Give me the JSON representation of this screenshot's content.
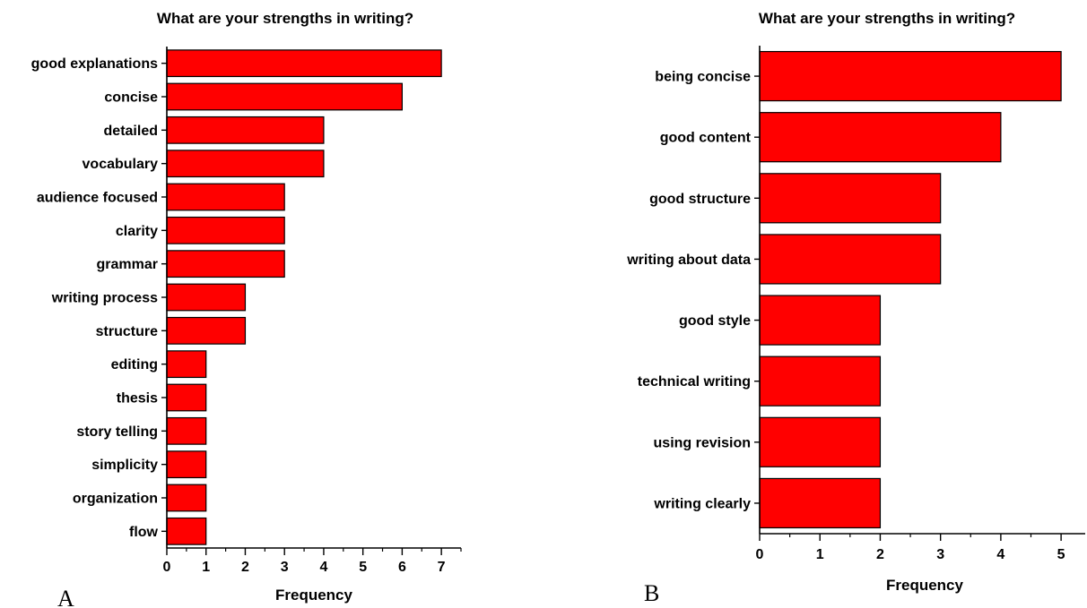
{
  "chart_data": [
    {
      "type": "bar",
      "orientation": "horizontal",
      "panel_label": "A",
      "title": "What are your strengths in writing?",
      "xlabel": "Frequency",
      "ylabel": "",
      "xlim": [
        0,
        7.5
      ],
      "xticks": [
        0,
        1,
        2,
        3,
        4,
        5,
        6,
        7
      ],
      "categories": [
        "good explanations",
        "concise",
        "detailed",
        "vocabulary",
        "audience focused",
        "clarity",
        "grammar",
        "writing process",
        "structure",
        "editing",
        "thesis",
        "story telling",
        "simplicity",
        "organization",
        "flow"
      ],
      "values": [
        7,
        6,
        4,
        4,
        3,
        3,
        3,
        2,
        2,
        1,
        1,
        1,
        1,
        1,
        1
      ],
      "bar_color": "#ff0000",
      "grid": false
    },
    {
      "type": "bar",
      "orientation": "horizontal",
      "panel_label": "B",
      "title": "What are your strengths in writing?",
      "xlabel": "Frequency",
      "ylabel": "",
      "xlim": [
        0,
        5.4
      ],
      "xticks": [
        0,
        1,
        2,
        3,
        4,
        5
      ],
      "categories": [
        "being concise",
        "good content",
        "good structure",
        "writing about data",
        "good style",
        "technical writing",
        "using revision",
        "writing clearly"
      ],
      "values": [
        5,
        4,
        3,
        3,
        2,
        2,
        2,
        2
      ],
      "bar_color": "#ff0000",
      "grid": false
    }
  ]
}
